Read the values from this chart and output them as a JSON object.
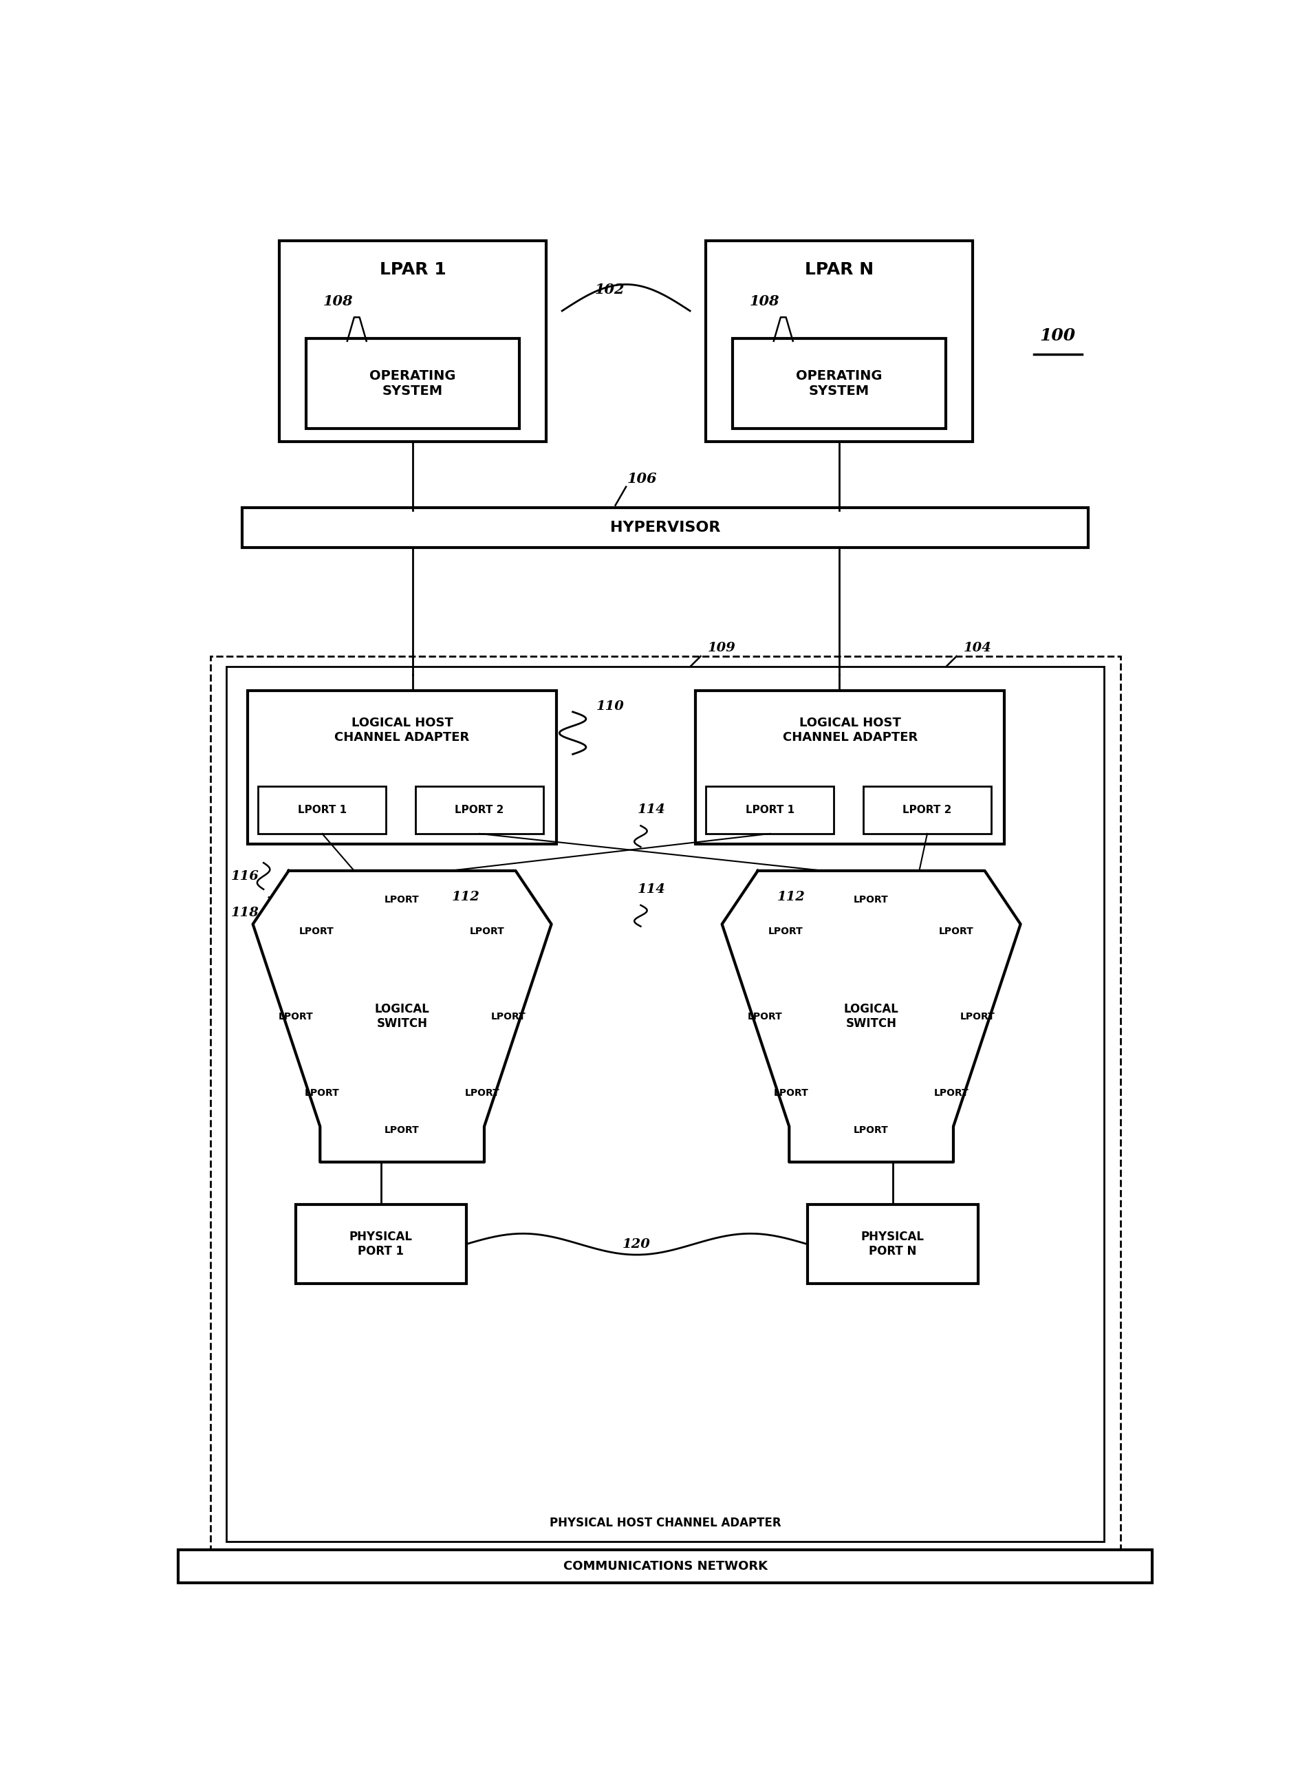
{
  "fig_width": 18.87,
  "fig_height": 25.92,
  "bg_color": "#ffffff",
  "lpar1_label": "LPAR 1",
  "lparn_label": "LPAR N",
  "os_label": "OPERATING\nSYSTEM",
  "hypervisor_label": "HYPERVISOR",
  "lhca_label": "LOGICAL HOST\nCHANNEL ADAPTER",
  "lport1_label": "LPORT 1",
  "lport2_label": "LPORT 2",
  "logical_switch_label": "LOGICAL\nSWITCH",
  "lport_label": "LPORT",
  "physical_port1_label": "PHYSICAL\nPORT 1",
  "physical_portn_label": "PHYSICAL\nPORT N",
  "phca_label": "PHYSICAL HOST CHANNEL ADAPTER",
  "comms_label": "COMMUNICATIONS NETWORK",
  "ref_100": "100",
  "ref_102": "102",
  "ref_104": "104",
  "ref_106": "106",
  "ref_108": "108",
  "ref_109": "109",
  "ref_110": "110",
  "ref_112": "112",
  "ref_114": "114",
  "ref_116": "116",
  "ref_118": "118",
  "ref_120": "120"
}
